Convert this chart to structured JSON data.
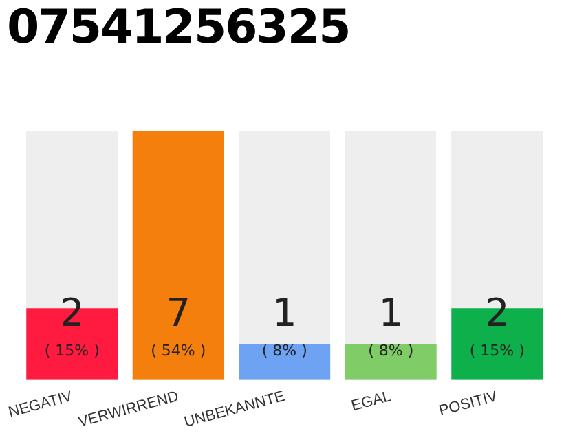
{
  "chart_data": {
    "type": "bar",
    "title": "07541256325",
    "categories": [
      "NEGATIV",
      "VERWIRREND",
      "UNBEKANNTE",
      "EGAL",
      "POSITIV"
    ],
    "values": [
      2,
      7,
      1,
      1,
      2
    ],
    "colors": [
      "#ff1a40",
      "#f57f0d",
      "#6ea2f2",
      "#80cc66",
      "#0db04b"
    ],
    "value_labels": [
      "2\n( 15% )",
      "7\n( 54% )",
      "1\n( 8% )",
      "1\n( 8% )",
      "2\n( 15% )"
    ],
    "grid": false,
    "legend": false
  }
}
